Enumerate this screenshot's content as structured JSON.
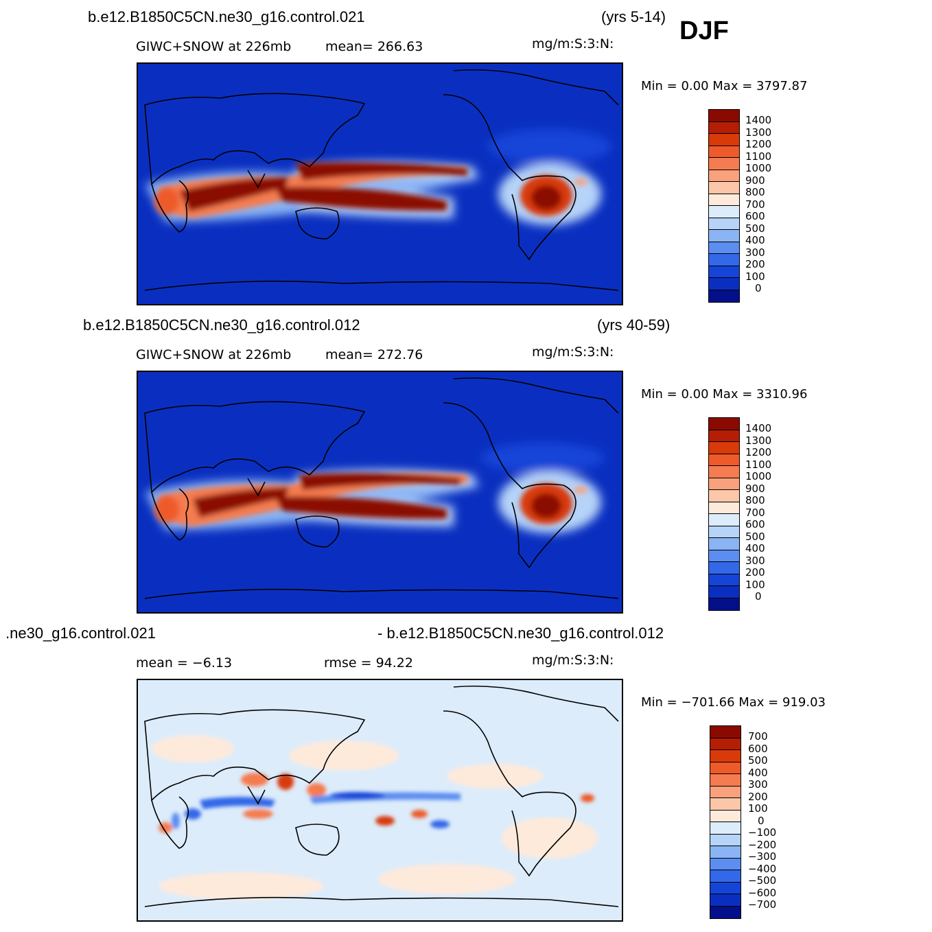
{
  "season": "DJF",
  "panels": [
    {
      "case": "b.e12.B1850C5CN.ne30_g16.control.021",
      "years": "(yrs 5-14)",
      "left_sub": "GIWC+SNOW at 226mb",
      "mid_sub": "mean= 266.63",
      "units": "mg/m:S:3:N:",
      "minmax": "Min =     0.00  Max  =  3797.87",
      "kind": "field"
    },
    {
      "case": "b.e12.B1850C5CN.ne30_g16.control.012",
      "years": "(yrs 40-59)",
      "left_sub": "GIWC+SNOW at 226mb",
      "mid_sub": "mean= 272.76",
      "units": "mg/m:S:3:N:",
      "minmax": "Min =     0.00  Max  =  3310.96",
      "kind": "field"
    },
    {
      "case": ".ne30_g16.control.021",
      "case_right": "- b.e12.B1850C5CN.ne30_g16.control.012",
      "left_sub": "mean =   −6.13",
      "mid_sub": "rmse =    94.22",
      "units": "mg/m:S:3:N:",
      "minmax": "Min = −701.66  Max  =  919.03",
      "kind": "diff"
    }
  ],
  "colorbars": {
    "field": {
      "labels": [
        "1400",
        "1300",
        "1200",
        "1100",
        "1000",
        "900",
        "800",
        "700",
        "600",
        "500",
        "400",
        "300",
        "200",
        "100",
        "0"
      ],
      "colors": [
        "#8b0a00",
        "#b41e05",
        "#d83a0a",
        "#ef5a2a",
        "#f57c50",
        "#f9a17c",
        "#fcc6a8",
        "#feeadb",
        "#dcecfb",
        "#b6d3f8",
        "#8ab4f4",
        "#5b8ef0",
        "#3368e8",
        "#1545d8",
        "#0a2fc0",
        "#04108a"
      ]
    },
    "diff": {
      "labels": [
        "700",
        "600",
        "500",
        "400",
        "300",
        "200",
        "100",
        "0",
        "−100",
        "−200",
        "−300",
        "−400",
        "−500",
        "−600",
        "−700"
      ],
      "colors": [
        "#8b0a00",
        "#b41e05",
        "#d83a0a",
        "#ef5a2a",
        "#f57c50",
        "#f9a17c",
        "#fcc6a8",
        "#feeadb",
        "#dcecfb",
        "#b6d3f8",
        "#8ab4f4",
        "#5b8ef0",
        "#3368e8",
        "#1545d8",
        "#0a2fc0",
        "#04108a"
      ]
    }
  },
  "chart_data": [
    {
      "type": "heatmap",
      "title": "GIWC+SNOW at 226mb",
      "subtitle": "b.e12.B1850C5CN.ne30_g16.control.021 (yrs 5-14)",
      "units": "mg/m:S:3:N:",
      "mean": 266.63,
      "min": 0.0,
      "max": 3797.87,
      "contour_levels": [
        0,
        100,
        200,
        300,
        400,
        500,
        600,
        700,
        800,
        900,
        1000,
        1100,
        1200,
        1300,
        1400
      ],
      "grid": false
    },
    {
      "type": "heatmap",
      "title": "GIWC+SNOW at 226mb",
      "subtitle": "b.e12.B1850C5CN.ne30_g16.control.012 (yrs 40-59)",
      "units": "mg/m:S:3:N:",
      "mean": 272.76,
      "min": 0.0,
      "max": 3310.96,
      "contour_levels": [
        0,
        100,
        200,
        300,
        400,
        500,
        600,
        700,
        800,
        900,
        1000,
        1100,
        1200,
        1300,
        1400
      ],
      "grid": false
    },
    {
      "type": "heatmap",
      "title": ".ne30_g16.control.021 - b.e12.B1850C5CN.ne30_g16.control.012",
      "units": "mg/m:S:3:N:",
      "mean": -6.13,
      "rmse": 94.22,
      "min": -701.66,
      "max": 919.03,
      "contour_levels": [
        -700,
        -600,
        -500,
        -400,
        -300,
        -200,
        -100,
        0,
        100,
        200,
        300,
        400,
        500,
        600,
        700
      ],
      "grid": false
    }
  ]
}
